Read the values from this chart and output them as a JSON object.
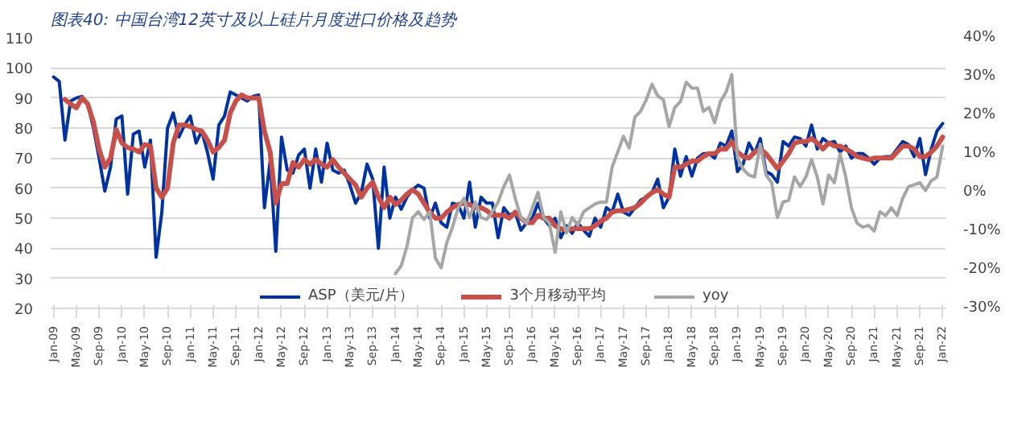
{
  "chart_data": {
    "type": "line",
    "title": "图表40: 中国台湾12英寸及以上硅片月度进口价格及趋势",
    "categories": [
      "Jan-09",
      null,
      null,
      null,
      "May-09",
      null,
      null,
      null,
      "Sep-09",
      null,
      null,
      null,
      "Jan-10",
      null,
      null,
      null,
      "May-10",
      null,
      null,
      null,
      "Sep-10",
      null,
      null,
      null,
      "Jan-11",
      null,
      null,
      null,
      "May-11",
      null,
      null,
      null,
      "Sep-11",
      null,
      null,
      null,
      "Jan-12",
      null,
      null,
      null,
      "May-12",
      null,
      null,
      null,
      "Sep-12",
      null,
      null,
      null,
      "Jan-13",
      null,
      null,
      null,
      "May-13",
      null,
      null,
      null,
      "Sep-13",
      null,
      null,
      null,
      "Jan-14",
      null,
      null,
      null,
      "May-14",
      null,
      null,
      null,
      "Sep-14",
      null,
      null,
      null,
      "Jan-15",
      null,
      null,
      null,
      "May-15",
      null,
      null,
      null,
      "Sep-15",
      null,
      null,
      null,
      "Jan-16",
      null,
      null,
      null,
      "May-16",
      null,
      null,
      null,
      "Sep-16",
      null,
      null,
      null,
      "Jan-17",
      null,
      null,
      null,
      "May-17",
      null,
      null,
      null,
      "Sep-17",
      null,
      null,
      null,
      "Jan-18",
      null,
      null,
      null,
      "May-18",
      null,
      null,
      null,
      "Sep-18",
      null,
      null,
      null,
      "Jan-19",
      null,
      null,
      null,
      "May-19",
      null,
      null,
      null,
      "Sep-19",
      null,
      null,
      null,
      "Jan-20",
      null,
      null,
      null,
      "May-20",
      null,
      null,
      null,
      "Sep-20",
      null,
      null,
      null,
      "Jan-21",
      null,
      null,
      null,
      "May-21",
      null,
      null,
      null,
      "Sep-21",
      null,
      null,
      null,
      "Jan-22"
    ],
    "series": [
      {
        "name": "ASP（美元/片）",
        "color": "#0033a0",
        "values": [
          97,
          95.5,
          76,
          89,
          90,
          90.5,
          88,
          80,
          70,
          59,
          67,
          83,
          84,
          58,
          78,
          79,
          67,
          76,
          37,
          52,
          80,
          85,
          77,
          81,
          84,
          75,
          79,
          72,
          63,
          81,
          84,
          92,
          91,
          90,
          89,
          90.5,
          91,
          53.5,
          69,
          39,
          77,
          66,
          65,
          71,
          73,
          60,
          73,
          62,
          75,
          66,
          65,
          66,
          61,
          55,
          58.5,
          68,
          63,
          40,
          67,
          50,
          57,
          53,
          57,
          59.5,
          61,
          60,
          50,
          55,
          48.5,
          47,
          55,
          54.5,
          50,
          62,
          47,
          57,
          55,
          55,
          43.5,
          53.5,
          51,
          52,
          46,
          48.5,
          50,
          55,
          50,
          47.5,
          50,
          43.5,
          47.5,
          45,
          48.5,
          46,
          44,
          50,
          47,
          53.5,
          52,
          58,
          52,
          51,
          53.5,
          56,
          57,
          58.5,
          63,
          53.5,
          57,
          73,
          64,
          70.5,
          64,
          70,
          71.5,
          71.5,
          70,
          75,
          74,
          79,
          65.5,
          68,
          75,
          71.5,
          76.5,
          65.5,
          64.5,
          62,
          75.5,
          74,
          77,
          76.5,
          74,
          81,
          73,
          76.5,
          75,
          75.5,
          72,
          74,
          70,
          71.5,
          71.5,
          70,
          68,
          70,
          70.5,
          70.5,
          73,
          75.5,
          74.5,
          70.5,
          76.5,
          64.5,
          73,
          79,
          81.5
        ]
      },
      {
        "name": "3个月移动平均",
        "color": "#c8504b",
        "values": [
          null,
          null,
          89.5,
          88,
          86.7,
          90,
          88,
          82,
          73,
          67,
          70,
          79.5,
          75,
          73.5,
          73,
          72,
          74.5,
          74,
          60,
          57,
          60,
          75,
          81,
          81,
          80.5,
          79.5,
          79,
          76,
          72,
          73.5,
          76,
          85,
          89,
          91,
          90,
          90,
          90,
          79,
          72,
          55,
          61.5,
          61.5,
          68.5,
          67,
          69.5,
          68,
          69.5,
          68,
          67,
          69.5,
          67,
          65,
          63,
          61,
          57,
          60,
          62,
          57,
          53.5,
          57,
          54.5,
          56,
          58,
          59.5,
          58,
          55,
          52,
          50,
          50,
          52,
          53.5,
          54.5,
          55,
          54.5,
          53.5,
          53.5,
          52.5,
          51,
          51,
          51,
          50,
          52,
          50,
          48.5,
          48.5,
          51,
          50,
          50,
          47.5,
          46.5,
          46,
          46.5,
          46.5,
          46.5,
          46.5,
          47.5,
          49,
          50,
          52,
          52.5,
          52.5,
          53,
          53.5,
          55,
          57,
          58.5,
          59.5,
          58,
          57,
          67,
          67,
          68,
          69,
          69,
          70.5,
          71.5,
          71.5,
          73,
          73,
          75.5,
          72,
          70.5,
          70,
          72,
          73,
          71.5,
          69,
          66.5,
          69,
          71.5,
          75,
          75.5,
          75.5,
          76.5,
          75,
          73,
          75,
          74,
          74,
          73,
          72,
          70.5,
          70,
          69.5,
          70,
          70,
          70,
          70,
          72,
          74,
          74,
          73,
          70.5,
          70.5,
          72,
          74,
          77
        ]
      },
      {
        "name": "yoy",
        "color": "#a6a6a6",
        "axis": "y2",
        "values": [
          null,
          null,
          null,
          null,
          null,
          null,
          null,
          null,
          null,
          null,
          null,
          null,
          null,
          null,
          null,
          null,
          null,
          null,
          null,
          null,
          null,
          null,
          null,
          null,
          null,
          null,
          null,
          null,
          null,
          null,
          null,
          null,
          null,
          null,
          null,
          null,
          null,
          null,
          null,
          null,
          null,
          null,
          null,
          null,
          null,
          null,
          null,
          null,
          null,
          null,
          null,
          null,
          null,
          null,
          null,
          null,
          null,
          null,
          null,
          null,
          -21,
          -19,
          -14,
          -6.5,
          -5,
          -7,
          -5,
          -17,
          -19.5,
          -13,
          -9,
          -4,
          -1.5,
          -6.5,
          -2.5,
          -6.5,
          -7,
          -5,
          -2.5,
          1.5,
          4.5,
          -1.5,
          -6.5,
          -8,
          -4,
          0,
          -6.5,
          -8,
          -15.5,
          -5,
          -10.5,
          -6.5,
          -8.5,
          -5,
          -4,
          -3,
          -2.5,
          -2.5,
          6.5,
          10.5,
          14.5,
          11.5,
          19.5,
          21,
          24,
          28,
          25,
          24,
          17,
          22,
          23.5,
          28.5,
          27,
          27,
          21,
          22,
          18,
          23.5,
          26,
          30.5,
          9,
          6,
          4.5,
          4,
          12.5,
          4.5,
          2.5,
          -6.5,
          -2.5,
          -2,
          4,
          1.5,
          4,
          8.5,
          4,
          -3,
          4.5,
          2.5,
          10,
          4,
          -4,
          -8,
          -9,
          -8.5,
          -10,
          -5,
          -6,
          -4,
          -6,
          -1.5,
          1.5,
          2,
          2.5,
          0.5,
          3,
          4,
          12
        ]
      }
    ],
    "ylim": [
      20,
      110
    ],
    "yticks": [
      20,
      30,
      40,
      50,
      60,
      70,
      80,
      90,
      100,
      110
    ],
    "y2lim": [
      -30,
      40
    ],
    "y2ticks": [
      {
        "value": -30,
        "label": "-30%"
      },
      {
        "value": -20,
        "label": "-20%"
      },
      {
        "value": -10,
        "label": "-10%"
      },
      {
        "value": 0,
        "label": "0%"
      },
      {
        "value": 10,
        "label": "10%"
      },
      {
        "value": 20,
        "label": "20%"
      },
      {
        "value": 30,
        "label": "30%"
      },
      {
        "value": 40,
        "label": "40%"
      }
    ],
    "grid": "y",
    "legend": "bottom",
    "marker": "none",
    "line_style": "solid"
  }
}
